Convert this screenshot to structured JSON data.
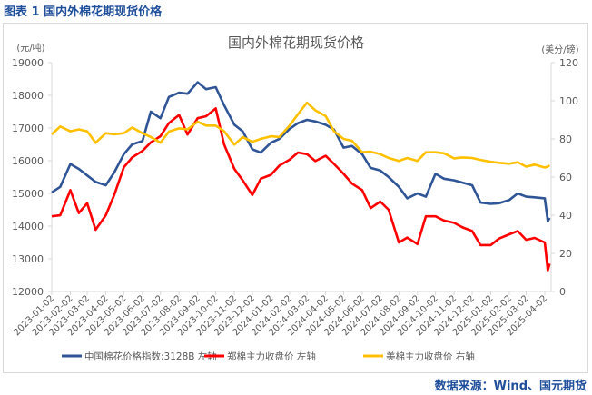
{
  "header": {
    "title": "图表 1 国内外棉花期现货价格"
  },
  "source": "数据来源：Wind、国元期货",
  "chart_data": {
    "type": "line",
    "title": "国内外棉花期现货价格",
    "ylabel_left": "(元/吨)",
    "ylabel_right": "(美分/磅)",
    "ylim_left": [
      12000,
      19000
    ],
    "ylim_right": [
      0,
      120
    ],
    "yticks_left": [
      "12000",
      "13000",
      "14000",
      "15000",
      "16000",
      "17000",
      "18000",
      "19000"
    ],
    "yticks_right": [
      "0",
      "20",
      "40",
      "60",
      "80",
      "100",
      "120"
    ],
    "xticks": [
      "2023-01-02",
      "2023-02-02",
      "2023-03-02",
      "2023-04-02",
      "2023-05-02",
      "2023-06-02",
      "2023-07-02",
      "2023-08-02",
      "2023-09-02",
      "2023-10-02",
      "2023-11-02",
      "2023-12-02",
      "2024-01-02",
      "2024-02-02",
      "2024-03-02",
      "2024-04-02",
      "2024-05-02",
      "2024-06-02",
      "2024-07-02",
      "2024-08-02",
      "2024-09-02",
      "2024-10-02",
      "2024-11-02",
      "2024-12-02",
      "2025-01-02",
      "2025-02-02",
      "2025-03-02",
      "2025-04-02"
    ],
    "grid": false,
    "legend_position": "bottom",
    "x": [
      "2023-01-02",
      "2023-01-16",
      "2023-02-02",
      "2023-02-16",
      "2023-03-02",
      "2023-03-16",
      "2023-04-02",
      "2023-04-16",
      "2023-05-02",
      "2023-05-16",
      "2023-06-02",
      "2023-06-16",
      "2023-07-02",
      "2023-07-16",
      "2023-08-02",
      "2023-08-16",
      "2023-09-02",
      "2023-09-16",
      "2023-10-02",
      "2023-10-16",
      "2023-11-02",
      "2023-11-16",
      "2023-12-02",
      "2023-12-16",
      "2024-01-02",
      "2024-01-16",
      "2024-02-02",
      "2024-02-16",
      "2024-03-02",
      "2024-03-16",
      "2024-04-02",
      "2024-04-16",
      "2024-05-02",
      "2024-05-16",
      "2024-06-02",
      "2024-06-16",
      "2024-07-02",
      "2024-07-16",
      "2024-08-02",
      "2024-08-16",
      "2024-09-02",
      "2024-09-16",
      "2024-10-02",
      "2024-10-16",
      "2024-11-02",
      "2024-11-16",
      "2024-12-02",
      "2024-12-16",
      "2025-01-02",
      "2025-01-16",
      "2025-02-02",
      "2025-02-16",
      "2025-03-02",
      "2025-03-16",
      "2025-04-02",
      "2025-04-07",
      "2025-04-10"
    ],
    "series": [
      {
        "name": "中国棉花价格指数:3128B  左轴",
        "axis": "left",
        "color": "#2f5597",
        "values": [
          15030,
          15200,
          15900,
          15750,
          15550,
          15350,
          15250,
          15640,
          16200,
          16500,
          16600,
          17500,
          17300,
          17950,
          18080,
          18050,
          18400,
          18190,
          18250,
          17700,
          17100,
          16900,
          16350,
          16250,
          16550,
          16670,
          16970,
          17150,
          17250,
          17200,
          17100,
          16950,
          16400,
          16450,
          16200,
          15780,
          15700,
          15500,
          15200,
          14850,
          15000,
          14900,
          15600,
          15450,
          15400,
          15330,
          15250,
          14720,
          14680,
          14700,
          14800,
          15000,
          14900,
          14880,
          14850,
          14150,
          14250
        ]
      },
      {
        "name": "郑棉主力收盘价  左轴",
        "axis": "left",
        "color": "#ff0000",
        "values": [
          14300,
          14330,
          15100,
          14400,
          14700,
          13890,
          14330,
          14950,
          15800,
          16100,
          16300,
          16560,
          16750,
          17150,
          17400,
          16800,
          17300,
          17360,
          17600,
          16500,
          15750,
          15400,
          14950,
          15450,
          15570,
          15850,
          16030,
          16250,
          16200,
          15990,
          16150,
          15900,
          15600,
          15300,
          15100,
          14550,
          14750,
          14500,
          13500,
          13650,
          13450,
          14300,
          14300,
          14170,
          14100,
          13960,
          13850,
          13420,
          13420,
          13620,
          13750,
          13850,
          13580,
          13640,
          13500,
          12650,
          12850
        ]
      },
      {
        "name": "美棉主力收盘价  右轴",
        "axis": "right",
        "color": "#ffc000",
        "values": [
          82.4,
          86.5,
          84,
          85,
          84,
          78,
          83,
          82.4,
          83,
          86,
          83,
          81,
          78,
          83.8,
          85.5,
          85,
          89,
          87,
          87,
          84,
          77,
          81,
          78.5,
          80,
          81.4,
          81,
          87,
          93,
          99,
          95,
          92,
          84,
          80,
          79,
          73,
          73.3,
          72,
          70,
          68.5,
          70,
          68.5,
          73,
          73,
          72.5,
          69.8,
          70.3,
          70,
          69,
          68,
          67.5,
          67,
          67.8,
          65.5,
          66.5,
          65,
          65.5,
          66.2
        ]
      }
    ]
  }
}
